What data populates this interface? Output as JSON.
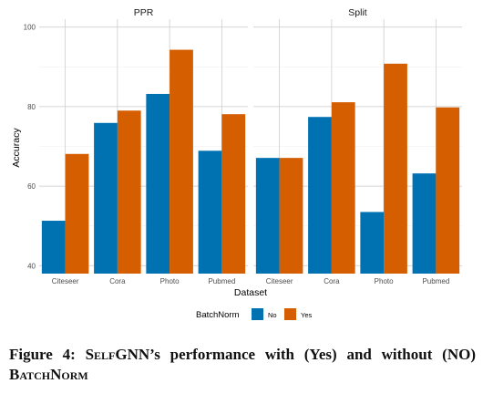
{
  "chart_data": {
    "type": "bar",
    "xlabel": "Dataset",
    "ylabel": "Accuracy",
    "ylim": [
      38,
      102
    ],
    "yticks": [
      40,
      60,
      80,
      100
    ],
    "grid": true,
    "legend": {
      "title": "BatchNorm",
      "position": "bottom"
    },
    "colors": {
      "No": "#0072b2",
      "Yes": "#d55e00"
    },
    "panels": [
      {
        "title": "PPR",
        "categories": [
          "Citeseer",
          "Cora",
          "Photo",
          "Pubmed"
        ],
        "series": [
          {
            "name": "No",
            "values": [
              51.3,
              75.9,
              83.2,
              68.9
            ]
          },
          {
            "name": "Yes",
            "values": [
              68.1,
              79.0,
              94.3,
              78.1
            ]
          }
        ]
      },
      {
        "title": "Split",
        "categories": [
          "Citeseer",
          "Cora",
          "Photo",
          "Pubmed"
        ],
        "series": [
          {
            "name": "No",
            "values": [
              67.1,
              77.4,
              53.5,
              63.2
            ]
          },
          {
            "name": "Yes",
            "values": [
              67.1,
              81.1,
              90.8,
              79.8
            ]
          }
        ]
      }
    ]
  },
  "caption": {
    "prefix": "Figure 4: ",
    "name": "SelfGNN",
    "middle": "’s performance with (Yes) and without (NO) ",
    "term": "BatchNorm"
  }
}
